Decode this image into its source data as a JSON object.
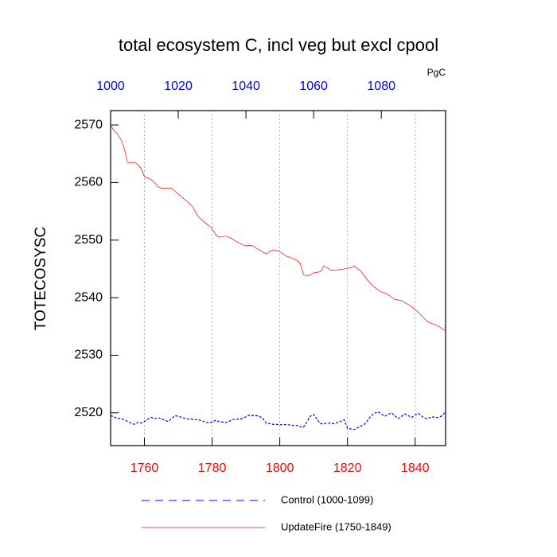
{
  "chart_data": {
    "type": "line",
    "title": "total ecosystem C, incl veg but excl cpool",
    "units": "PgC",
    "ylabel": "TOTECOSYSC",
    "xlim": [
      1750,
      1849
    ],
    "xticks": [
      1760,
      1780,
      1800,
      1820,
      1840
    ],
    "xtick_color": "red",
    "x2lim": [
      1000,
      1099
    ],
    "x2ticks": [
      1000,
      1020,
      1040,
      1060,
      1080
    ],
    "x2tick_color": "blue",
    "ylim": [
      2514.3,
      2572.5
    ],
    "yticks": [
      2520,
      2530,
      2540,
      2550,
      2560,
      2570
    ],
    "grid": true,
    "x": [
      1750,
      1751,
      1752,
      1753,
      1754,
      1755,
      1756,
      1757,
      1758,
      1759,
      1760,
      1761,
      1762,
      1763,
      1764,
      1765,
      1766,
      1767,
      1768,
      1769,
      1770,
      1771,
      1772,
      1773,
      1774,
      1775,
      1776,
      1777,
      1778,
      1779,
      1780,
      1781,
      1782,
      1783,
      1784,
      1785,
      1786,
      1787,
      1788,
      1789,
      1790,
      1791,
      1792,
      1793,
      1794,
      1795,
      1796,
      1797,
      1798,
      1799,
      1800,
      1801,
      1802,
      1803,
      1804,
      1805,
      1806,
      1807,
      1808,
      1809,
      1810,
      1811,
      1812,
      1813,
      1814,
      1815,
      1816,
      1817,
      1818,
      1819,
      1820,
      1821,
      1822,
      1823,
      1824,
      1825,
      1826,
      1827,
      1828,
      1829,
      1830,
      1831,
      1832,
      1833,
      1834,
      1835,
      1836,
      1837,
      1838,
      1839,
      1840,
      1841,
      1842,
      1843,
      1844,
      1845,
      1846,
      1847,
      1848,
      1849
    ],
    "x2": [
      1000,
      1001,
      1002,
      1003,
      1004,
      1005,
      1006,
      1007,
      1008,
      1009,
      1010,
      1011,
      1012,
      1013,
      1014,
      1015,
      1016,
      1017,
      1018,
      1019,
      1020,
      1021,
      1022,
      1023,
      1024,
      1025,
      1026,
      1027,
      1028,
      1029,
      1030,
      1031,
      1032,
      1033,
      1034,
      1035,
      1036,
      1037,
      1038,
      1039,
      1040,
      1041,
      1042,
      1043,
      1044,
      1045,
      1046,
      1047,
      1048,
      1049,
      1050,
      1051,
      1052,
      1053,
      1054,
      1055,
      1056,
      1057,
      1058,
      1059,
      1060,
      1061,
      1062,
      1063,
      1064,
      1065,
      1066,
      1067,
      1068,
      1069,
      1070,
      1071,
      1072,
      1073,
      1074,
      1075,
      1076,
      1077,
      1078,
      1079,
      1080,
      1081,
      1082,
      1083,
      1084,
      1085,
      1086,
      1087,
      1088,
      1089,
      1090,
      1091,
      1092,
      1093,
      1094,
      1095,
      1096,
      1097,
      1098,
      1099
    ],
    "series": [
      {
        "name": "Control (1000-1099)",
        "color": "#0000ff",
        "line_style": "dashed",
        "axis": "x2",
        "values": [
          2519.5,
          2519.3,
          2519.0,
          2519.0,
          2518.8,
          2518.5,
          2518.2,
          2518.0,
          2518.3,
          2518.2,
          2518.5,
          2518.9,
          2519.2,
          2519.0,
          2519.1,
          2519.0,
          2518.7,
          2518.5,
          2519.0,
          2519.5,
          2519.4,
          2519.2,
          2519.0,
          2518.9,
          2518.9,
          2518.8,
          2518.8,
          2518.6,
          2518.4,
          2518.2,
          2518.4,
          2518.7,
          2518.5,
          2518.4,
          2518.3,
          2518.5,
          2518.8,
          2518.9,
          2518.9,
          2519.0,
          2519.3,
          2519.6,
          2519.5,
          2519.5,
          2519.4,
          2519.0,
          2518.2,
          2518.1,
          2518.0,
          2518.0,
          2517.9,
          2518.0,
          2517.9,
          2517.9,
          2517.8,
          2517.8,
          2517.6,
          2517.5,
          2518.4,
          2519.4,
          2519.7,
          2518.9,
          2518.1,
          2518.1,
          2518.2,
          2518.2,
          2518.1,
          2518.3,
          2518.5,
          2518.8,
          2517.3,
          2517.2,
          2517.1,
          2517.4,
          2517.7,
          2518.0,
          2518.7,
          2519.5,
          2519.9,
          2520.2,
          2519.8,
          2519.4,
          2519.7,
          2520.0,
          2519.5,
          2519.0,
          2519.4,
          2519.8,
          2519.5,
          2519.2,
          2519.6,
          2519.9,
          2519.4,
          2519.0,
          2519.1,
          2519.3,
          2519.2,
          2519.2,
          2519.5,
          2520.2
        ]
      },
      {
        "name": "UpdateFire (1750-1849)",
        "color": "#ff0000",
        "line_style": "solid",
        "axis": "x",
        "values": [
          2570.0,
          2569.0,
          2568.5,
          2567.5,
          2566.0,
          2563.5,
          2563.4,
          2563.5,
          2563.2,
          2562.5,
          2561.0,
          2560.8,
          2560.5,
          2560.0,
          2559.3,
          2559.0,
          2559.0,
          2559.0,
          2559.0,
          2558.5,
          2558.0,
          2557.5,
          2557.0,
          2556.5,
          2556.0,
          2555.0,
          2554.0,
          2553.5,
          2553.0,
          2552.5,
          2552.0,
          2551.0,
          2550.5,
          2550.6,
          2550.7,
          2550.5,
          2550.2,
          2549.8,
          2549.5,
          2549.2,
          2549.0,
          2549.1,
          2549.0,
          2548.6,
          2548.3,
          2547.9,
          2547.6,
          2548.0,
          2548.3,
          2548.2,
          2548.0,
          2547.6,
          2547.2,
          2547.0,
          2546.8,
          2546.5,
          2546.0,
          2544.0,
          2543.8,
          2544.0,
          2544.3,
          2544.4,
          2544.5,
          2545.5,
          2545.2,
          2544.8,
          2544.8,
          2544.8,
          2544.9,
          2545.0,
          2545.1,
          2545.2,
          2545.5,
          2545.0,
          2544.6,
          2543.8,
          2543.0,
          2542.4,
          2541.8,
          2541.4,
          2541.0,
          2540.8,
          2540.5,
          2540.1,
          2539.7,
          2539.6,
          2539.5,
          2539.1,
          2538.8,
          2538.4,
          2538.0,
          2537.4,
          2536.8,
          2536.2,
          2535.7,
          2535.5,
          2535.3,
          2535.0,
          2534.6,
          2534.3
        ]
      }
    ]
  }
}
